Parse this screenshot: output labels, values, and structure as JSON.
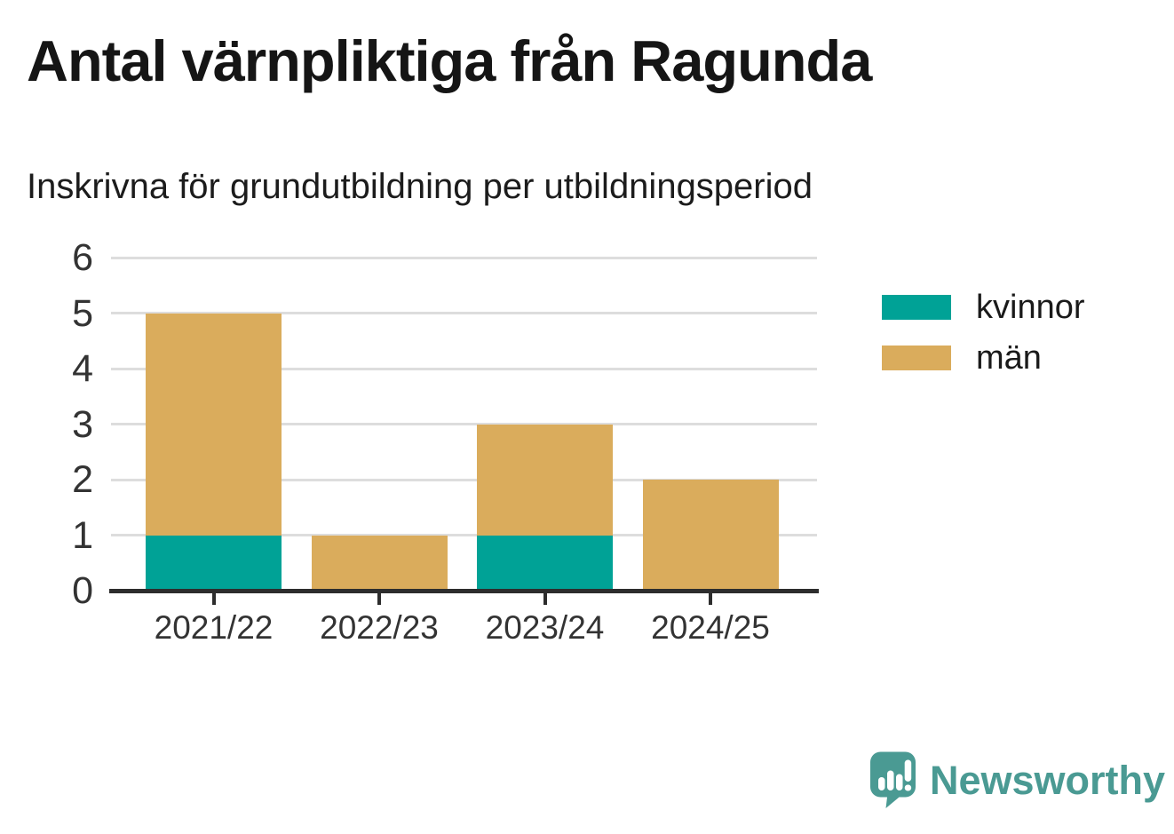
{
  "header": {
    "title": "Antal värnpliktiga från Ragunda",
    "subtitle": "Inskrivna för grundutbildning per utbildningsperiod"
  },
  "chart_data": {
    "type": "bar",
    "stacked": true,
    "categories": [
      "2021/22",
      "2022/23",
      "2023/24",
      "2024/25"
    ],
    "series": [
      {
        "name": "kvinnor",
        "color": "#00a296",
        "values": [
          1,
          0,
          1,
          0
        ]
      },
      {
        "name": "män",
        "color": "#daac5c",
        "values": [
          4,
          1,
          2,
          2
        ]
      }
    ],
    "totals": [
      5,
      1,
      3,
      2
    ],
    "title": "Antal värnpliktiga från Ragunda",
    "subtitle": "Inskrivna för grundutbildning per utbildningsperiod",
    "xlabel": "",
    "ylabel": "",
    "ylim": [
      0,
      6
    ],
    "yticks": [
      0,
      1,
      2,
      3,
      4,
      5,
      6
    ],
    "grid": true,
    "gridline_color": "#dddddd",
    "axis_color": "#2d2d2d",
    "tick_label_color": "#333333",
    "legend_position": "right"
  },
  "legend": {
    "items": [
      {
        "label": "kvinnor",
        "color": "#00a296"
      },
      {
        "label": "män",
        "color": "#daac5c"
      }
    ]
  },
  "footer": {
    "brand": "Newsworthy",
    "brand_color": "#4a9a93"
  }
}
